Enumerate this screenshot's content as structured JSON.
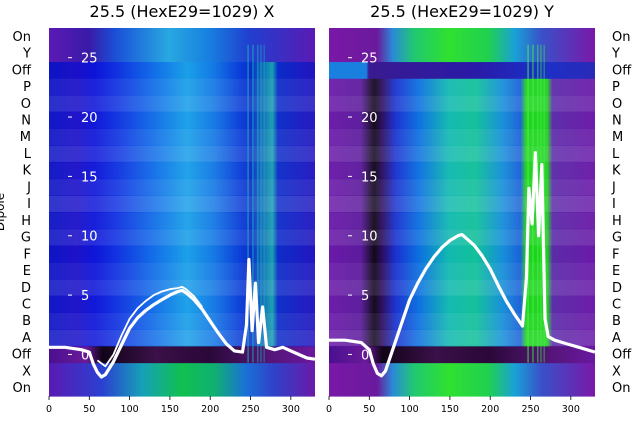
{
  "chart_data": [
    {
      "type": "heatmap",
      "title": "25.5 (HexE29=1029) X",
      "ylabel": "Dipole",
      "row_labels": [
        "On",
        "X",
        "Off",
        "A",
        "B",
        "C",
        "D",
        "E",
        "F",
        "G",
        "H",
        "I",
        "J",
        "K",
        "L",
        "M",
        "N",
        "O",
        "P",
        "Off",
        "Y",
        "On"
      ],
      "x_ticks": [
        0,
        50,
        100,
        150,
        200,
        250,
        300
      ],
      "xlim": [
        0,
        330
      ],
      "overlay_ticks": [
        0,
        5,
        10,
        15,
        20,
        25
      ],
      "overlay_ylim": [
        -3.5,
        27.5
      ],
      "series": [
        {
          "x": [
            0,
            20,
            40,
            50,
            55,
            60,
            65,
            70,
            80,
            90,
            100,
            110,
            120,
            130,
            140,
            150,
            160,
            165,
            170,
            180,
            190,
            200,
            210,
            220,
            230,
            240,
            245,
            248,
            252,
            256,
            260,
            265,
            270,
            280,
            290,
            300,
            310,
            320,
            330
          ],
          "y": [
            0.6,
            0.6,
            0.4,
            0.2,
            -0.8,
            -1.5,
            -1.9,
            -1.7,
            -0.6,
            0.8,
            2.2,
            3.1,
            3.7,
            4.2,
            4.6,
            5.0,
            5.3,
            5.4,
            5.2,
            4.6,
            3.8,
            2.8,
            1.8,
            0.9,
            0.3,
            0.2,
            2.5,
            8.0,
            2.0,
            6.0,
            1.0,
            4.0,
            0.6,
            0.4,
            0.6,
            0.3,
            0.0,
            -0.3,
            -0.4
          ]
        },
        {
          "x": [
            60,
            70,
            80,
            90,
            100,
            110,
            120,
            130,
            140,
            150,
            160,
            165,
            170,
            180,
            190
          ],
          "y": [
            -0.5,
            -1.0,
            0.0,
            1.6,
            3.0,
            3.9,
            4.5,
            5.0,
            5.3,
            5.5,
            5.6,
            5.7,
            5.5,
            4.9,
            4.0
          ]
        }
      ]
    },
    {
      "type": "heatmap",
      "title": "25.5 (HexE29=1029) Y",
      "ylabel": "",
      "row_labels": [
        "On",
        "X",
        "Off",
        "A",
        "B",
        "C",
        "D",
        "E",
        "F",
        "G",
        "H",
        "I",
        "J",
        "K",
        "L",
        "M",
        "N",
        "O",
        "P",
        "Off",
        "Y",
        "On"
      ],
      "x_ticks": [
        0,
        50,
        100,
        150,
        200,
        250,
        300
      ],
      "xlim": [
        0,
        330
      ],
      "overlay_ticks": [
        0,
        5,
        10,
        15,
        20,
        25
      ],
      "overlay_ylim": [
        -3.5,
        27.5
      ],
      "series": [
        {
          "x": [
            0,
            20,
            40,
            50,
            55,
            60,
            65,
            70,
            80,
            90,
            100,
            110,
            120,
            130,
            140,
            150,
            160,
            165,
            170,
            180,
            190,
            200,
            210,
            220,
            230,
            240,
            245,
            248,
            252,
            256,
            260,
            264,
            268,
            272,
            280,
            290,
            300,
            310,
            320,
            330
          ],
          "y": [
            1.2,
            1.2,
            1.0,
            0.4,
            -0.8,
            -1.6,
            -1.8,
            -1.4,
            0.6,
            2.6,
            4.6,
            6.0,
            7.2,
            8.2,
            9.0,
            9.6,
            10.0,
            10.1,
            9.8,
            9.2,
            8.3,
            7.2,
            5.8,
            4.5,
            3.4,
            2.4,
            6.5,
            14.0,
            11.0,
            17.0,
            10.0,
            16.0,
            3.0,
            1.5,
            1.2,
            1.0,
            0.8,
            0.6,
            0.4,
            0.2
          ]
        }
      ]
    }
  ]
}
